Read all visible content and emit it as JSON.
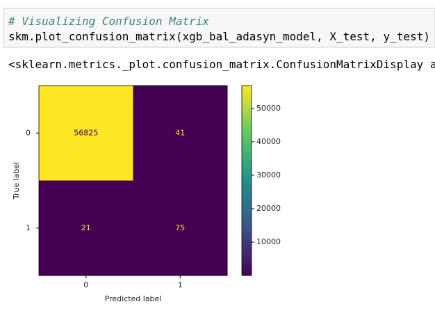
{
  "cell": {
    "comment": "# Visualizing Confusion Matrix",
    "code": "skm.plot_confusion_matrix(xgb_bal_adasyn_model, X_test, y_test)"
  },
  "output": "<sklearn.metrics._plot.confusion_matrix.ConfusionMatrixDisplay a",
  "chart_data": {
    "type": "heatmap",
    "colormap": "viridis",
    "x_categories": [
      "0",
      "1"
    ],
    "y_categories": [
      "0",
      "1"
    ],
    "values": [
      [
        56825,
        41
      ],
      [
        21,
        75
      ]
    ],
    "xlabel": "Predicted label",
    "ylabel": "True label",
    "clim": [
      21,
      56825
    ],
    "cticks": [
      10000,
      20000,
      30000,
      40000,
      50000
    ]
  }
}
